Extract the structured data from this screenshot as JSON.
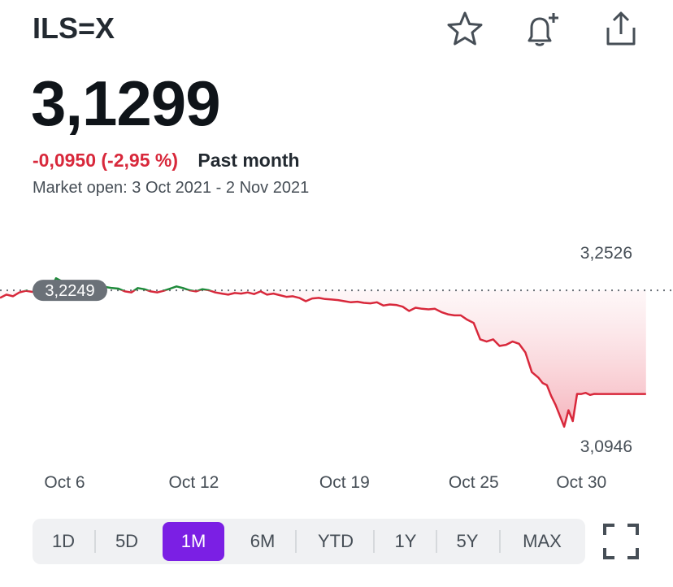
{
  "header": {
    "ticker": "ILS=X",
    "icons": [
      "star-icon",
      "bell-plus-icon",
      "share-icon"
    ]
  },
  "quote": {
    "price": "3,1299",
    "change": "-0,0950 (-2,95 %)",
    "period": "Past month",
    "market_status": "Market open: 3 Oct 2021 - 2 Nov 2021"
  },
  "chart_data": {
    "type": "line",
    "high_label": "3,2526",
    "low_label": "3,0946",
    "previous_close_label": "3,2249",
    "previous_close": 3.2249,
    "x_tick_labels": [
      "Oct 6",
      "Oct 12",
      "Oct 19",
      "Oct 25",
      "Oct 30"
    ],
    "x_tick_days": [
      6,
      12,
      19,
      25,
      30
    ],
    "ylim": [
      3.0946,
      3.2526
    ],
    "colors": {
      "up": "#1e8a3a",
      "down": "#d8283b",
      "area": "#f8c9cf",
      "dotted": "#6b7178"
    },
    "series": [
      {
        "x": [
          3,
          3.3,
          3.6,
          3.9,
          4.2,
          4.5,
          4.8,
          5.1,
          5.4,
          5.6,
          5.8,
          6.0,
          6.2,
          6.4,
          6.6,
          6.8,
          7.0,
          7.3,
          7.6,
          7.9,
          8.2,
          8.5,
          8.8,
          9.1,
          9.4,
          9.7,
          10.0,
          10.3,
          10.6,
          10.9,
          11.2,
          11.5,
          11.8,
          12.1,
          12.4,
          12.7,
          13.0,
          13.3,
          13.6,
          13.9,
          14.2,
          14.5,
          14.8,
          15.1,
          15.4,
          15.7,
          16.0,
          16.3,
          16.6,
          16.9,
          17.2,
          17.5,
          17.8,
          18.1,
          18.4,
          18.7,
          19.0,
          19.3,
          19.6,
          19.9,
          20.2,
          20.5,
          20.8,
          21.1,
          21.4,
          21.7,
          22.0,
          22.3,
          22.6,
          22.9,
          23.2,
          23.5,
          23.8,
          24.1,
          24.4,
          24.7,
          25.0,
          25.3,
          25.6,
          25.9,
          26.2,
          26.5,
          26.8,
          27.1,
          27.4,
          27.7,
          28.0,
          28.2,
          28.4,
          28.6,
          28.8,
          29.0,
          29.2,
          29.4,
          29.6,
          29.8,
          30.0,
          30.2,
          30.4,
          30.6,
          30.8,
          31.0,
          31.2,
          31.4,
          31.6,
          31.8,
          32.0,
          32.2,
          32.4,
          32.6,
          32.8,
          33.0
        ],
        "values": [
          3.218,
          3.221,
          3.2195,
          3.223,
          3.2245,
          3.2235,
          3.224,
          3.225,
          3.228,
          3.236,
          3.234,
          3.232,
          3.23,
          3.228,
          3.227,
          3.226,
          3.223,
          3.2245,
          3.226,
          3.228,
          3.227,
          3.2265,
          3.224,
          3.223,
          3.227,
          3.226,
          3.224,
          3.223,
          3.2245,
          3.2265,
          3.2285,
          3.227,
          3.225,
          3.224,
          3.226,
          3.225,
          3.223,
          3.222,
          3.221,
          3.2225,
          3.222,
          3.223,
          3.2215,
          3.224,
          3.221,
          3.222,
          3.2205,
          3.219,
          3.2195,
          3.218,
          3.215,
          3.2175,
          3.218,
          3.217,
          3.2165,
          3.216,
          3.215,
          3.214,
          3.2145,
          3.2135,
          3.213,
          3.214,
          3.211,
          3.212,
          3.2115,
          3.21,
          3.206,
          3.209,
          3.208,
          3.2075,
          3.208,
          3.205,
          3.203,
          3.202,
          3.202,
          3.198,
          3.195,
          3.18,
          3.178,
          3.18,
          3.174,
          3.175,
          3.178,
          3.176,
          3.168,
          3.15,
          3.145,
          3.14,
          3.138,
          3.128,
          3.12,
          3.11,
          3.1,
          3.115,
          3.105,
          3.13,
          3.1299,
          3.131,
          3.129,
          3.13,
          3.1299,
          3.1299,
          3.1299,
          3.1299,
          3.1299,
          3.1299,
          3.1299,
          3.1299,
          3.1299,
          3.1299,
          3.1299,
          3.1299
        ]
      }
    ]
  },
  "range_selector": {
    "options": [
      "1D",
      "5D",
      "1M",
      "6M",
      "YTD",
      "1Y",
      "5Y",
      "MAX"
    ],
    "selected": "1M"
  }
}
